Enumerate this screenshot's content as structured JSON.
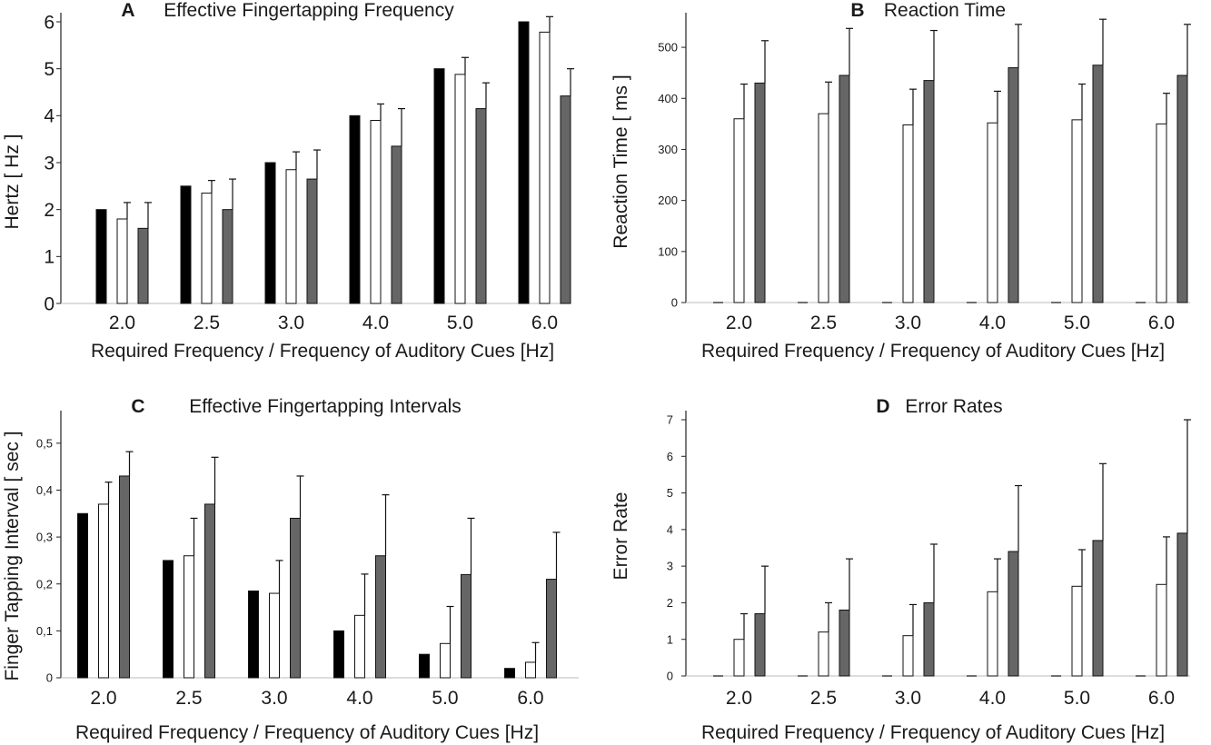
{
  "figure": {
    "title": "",
    "shared": {
      "categories": [
        "2.0",
        "2.5",
        "3.0",
        "4.0",
        "5.0",
        "6.0"
      ],
      "xlabel": "Required Frequency / Frequency of Auditory Cues [Hz]",
      "colors": {
        "black": "#000000",
        "white": "#ffffff",
        "gray": "#666666",
        "axis": "#222222"
      }
    }
  },
  "chart_data": [
    {
      "id": "A",
      "type": "bar",
      "panel_letter": "A",
      "title": "Effective Fingertapping Frequency",
      "xlabel": "Required Frequency / Frequency of Auditory Cues [Hz]",
      "ylabel": "Hertz  [ Hz ]",
      "ylim": [
        0,
        6
      ],
      "yticks": [
        "0",
        "1",
        "2",
        "3",
        "4",
        "5",
        "6"
      ],
      "ytick_values": [
        0,
        1,
        2,
        3,
        4,
        5,
        6
      ],
      "categories": [
        "2.0",
        "2.5",
        "3.0",
        "4.0",
        "5.0",
        "6.0"
      ],
      "grid": false,
      "series": [
        {
          "fill": "#000000",
          "values": [
            2.0,
            2.5,
            3.0,
            4.0,
            5.0,
            6.0
          ],
          "errors": [
            0,
            0,
            0,
            0,
            0,
            0
          ]
        },
        {
          "fill": "#ffffff",
          "values": [
            1.8,
            2.35,
            2.85,
            3.9,
            4.88,
            5.78
          ],
          "errors": [
            0.35,
            0.27,
            0.38,
            0.35,
            0.36,
            0.33
          ]
        },
        {
          "fill": "#666666",
          "values": [
            1.6,
            2.0,
            2.65,
            3.35,
            4.15,
            4.42
          ],
          "errors": [
            0.55,
            0.65,
            0.62,
            0.8,
            0.55,
            0.58
          ]
        }
      ]
    },
    {
      "id": "B",
      "type": "bar",
      "panel_letter": "B",
      "title": "Reaction Time",
      "xlabel": "Required Frequency / Frequency of Auditory Cues [Hz]",
      "ylabel": "Reaction Time  [ ms ]",
      "ylim": [
        0,
        550
      ],
      "yticks": [
        "0",
        "100",
        "200",
        "300",
        "400",
        "500"
      ],
      "ytick_values": [
        0,
        100,
        200,
        300,
        400,
        500
      ],
      "categories": [
        "2.0",
        "2.5",
        "3.0",
        "4.0",
        "5.0",
        "6.0"
      ],
      "grid": false,
      "series": [
        {
          "fill": "#000000",
          "values": [
            0,
            0,
            0,
            0,
            0,
            0
          ],
          "errors": [
            0,
            0,
            0,
            0,
            0,
            0
          ]
        },
        {
          "fill": "#ffffff",
          "values": [
            360,
            370,
            348,
            352,
            358,
            350
          ],
          "errors": [
            68,
            62,
            70,
            62,
            70,
            60
          ]
        },
        {
          "fill": "#666666",
          "values": [
            430,
            445,
            435,
            460,
            465,
            445
          ],
          "errors": [
            83,
            92,
            98,
            85,
            90,
            100
          ]
        }
      ]
    },
    {
      "id": "C",
      "type": "bar",
      "panel_letter": "C",
      "title": "Effective Fingertapping Intervals",
      "xlabel": "Required Frequency / Frequency of Auditory Cues [Hz]",
      "ylabel": "Finger Tapping Interval  [ sec ]",
      "ylim": [
        0,
        0.55
      ],
      "yticks": [
        "0",
        "0,1",
        "0,2",
        "0,3",
        "0,4",
        "0,5"
      ],
      "ytick_values": [
        0,
        0.1,
        0.2,
        0.3,
        0.4,
        0.5
      ],
      "categories": [
        "2.0",
        "2.5",
        "3.0",
        "4.0",
        "5.0",
        "6.0"
      ],
      "grid": false,
      "series": [
        {
          "fill": "#000000",
          "values": [
            0.35,
            0.25,
            0.185,
            0.1,
            0.05,
            0.02
          ],
          "errors": [
            0,
            0,
            0,
            0,
            0,
            0
          ]
        },
        {
          "fill": "#ffffff",
          "values": [
            0.37,
            0.26,
            0.18,
            0.133,
            0.073,
            0.033
          ],
          "errors": [
            0.047,
            0.08,
            0.07,
            0.088,
            0.079,
            0.042
          ]
        },
        {
          "fill": "#666666",
          "values": [
            0.43,
            0.37,
            0.34,
            0.26,
            0.22,
            0.21
          ],
          "errors": [
            0.052,
            0.1,
            0.09,
            0.13,
            0.12,
            0.1
          ]
        }
      ]
    },
    {
      "id": "D",
      "type": "bar",
      "panel_letter": "D",
      "title": "Error Rates",
      "xlabel": "Required Frequency / Frequency of Auditory Cues [Hz]",
      "ylabel": "Error Rate",
      "ylim": [
        0,
        7
      ],
      "yticks": [
        "0",
        "1",
        "2",
        "3",
        "4",
        "5",
        "6",
        "7"
      ],
      "ytick_values": [
        0,
        1,
        2,
        3,
        4,
        5,
        6,
        7
      ],
      "categories": [
        "2.0",
        "2.5",
        "3.0",
        "4.0",
        "5.0",
        "6.0"
      ],
      "grid": false,
      "series": [
        {
          "fill": "#000000",
          "values": [
            0,
            0,
            0,
            0,
            0,
            0
          ],
          "errors": [
            0,
            0,
            0,
            0,
            0,
            0
          ]
        },
        {
          "fill": "#ffffff",
          "values": [
            1.0,
            1.2,
            1.1,
            2.3,
            2.45,
            2.5
          ],
          "errors": [
            0.7,
            0.8,
            0.85,
            0.9,
            1.0,
            1.3
          ]
        },
        {
          "fill": "#666666",
          "values": [
            1.7,
            1.8,
            2.0,
            3.4,
            3.7,
            3.9
          ],
          "errors": [
            1.3,
            1.4,
            1.6,
            1.8,
            2.1,
            3.1
          ]
        }
      ]
    }
  ]
}
